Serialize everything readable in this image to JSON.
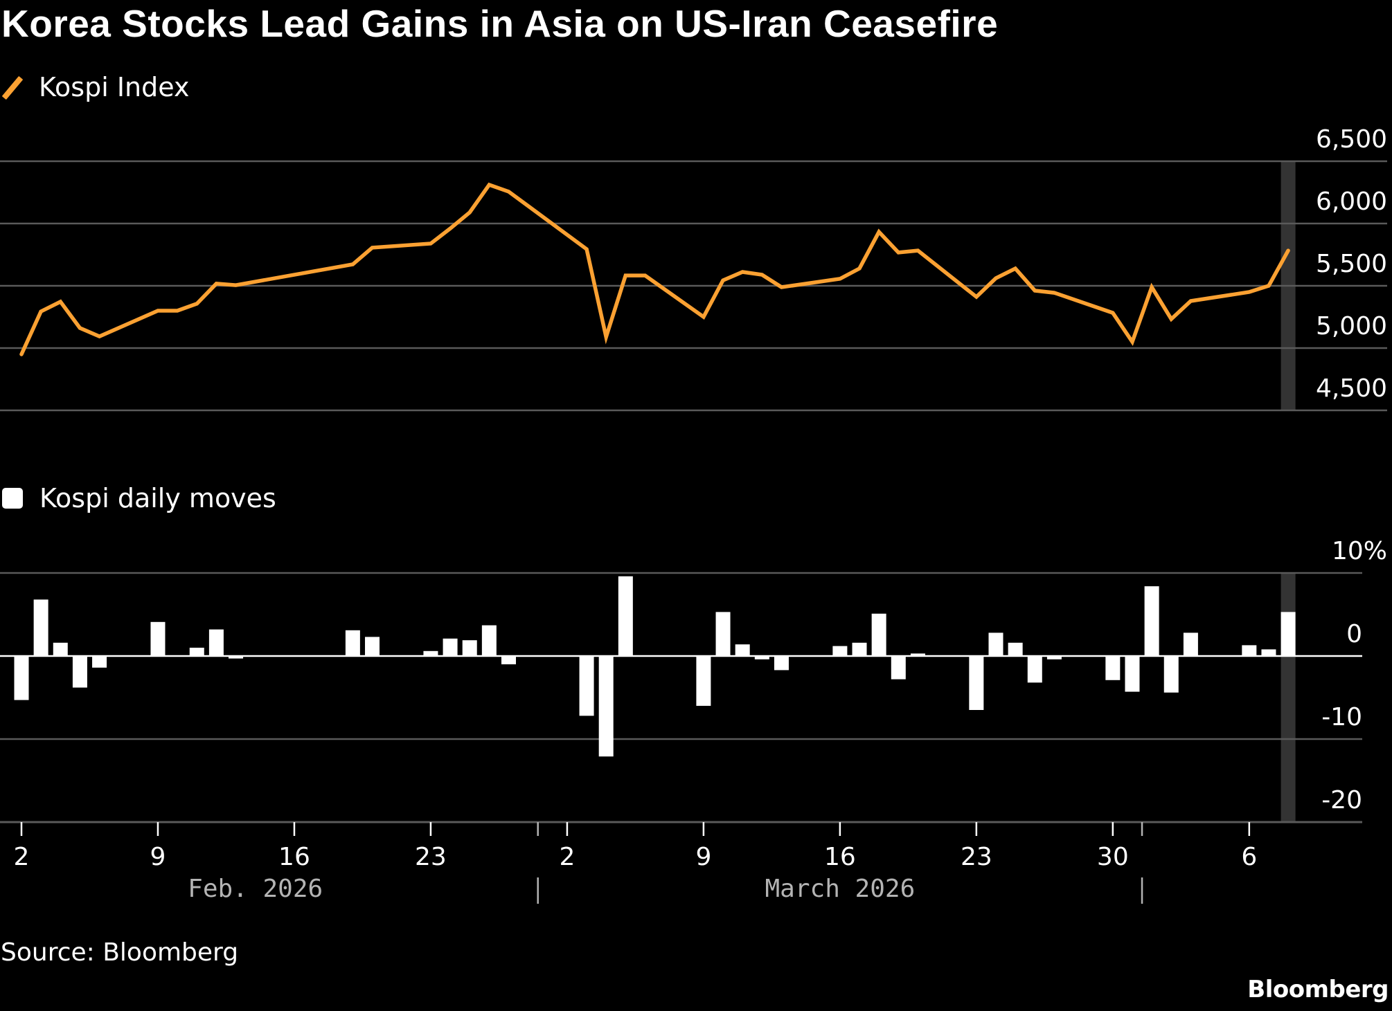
{
  "chart_data": [
    {
      "type": "line",
      "title": "Korea Stocks Lead Gains in Asia on US-Iran Ceasefire",
      "legend": "Kospi Index",
      "legend_placement": "top-left",
      "color": "#FBA132",
      "y_axis_side": "right",
      "ylim": [
        4500,
        6500
      ],
      "yticks": [
        6500,
        6000,
        5500,
        5000,
        4500
      ],
      "ytick_labels": [
        "6,500",
        "6,000",
        "5,500",
        "5,000",
        "4,500"
      ],
      "grid": true,
      "highlight_date": "2026-04-08",
      "points": [
        {
          "date": "2026-02-02",
          "value": 4950
        },
        {
          "date": "2026-02-03",
          "value": 5294
        },
        {
          "date": "2026-02-04",
          "value": 5372
        },
        {
          "date": "2026-02-05",
          "value": 5161
        },
        {
          "date": "2026-02-06",
          "value": 5094
        },
        {
          "date": "2026-02-09",
          "value": 5300
        },
        {
          "date": "2026-02-10",
          "value": 5300
        },
        {
          "date": "2026-02-11",
          "value": 5356
        },
        {
          "date": "2026-02-12",
          "value": 5517
        },
        {
          "date": "2026-02-13",
          "value": 5505
        },
        {
          "date": "2026-02-19",
          "value": 5672
        },
        {
          "date": "2026-02-20",
          "value": 5806
        },
        {
          "date": "2026-02-23",
          "value": 5839
        },
        {
          "date": "2026-02-24",
          "value": 5960
        },
        {
          "date": "2026-02-25",
          "value": 6089
        },
        {
          "date": "2026-02-26",
          "value": 6311
        },
        {
          "date": "2026-02-27",
          "value": 6256
        },
        {
          "date": "2026-03-03",
          "value": 5794
        },
        {
          "date": "2026-03-04",
          "value": 5089
        },
        {
          "date": "2026-03-05",
          "value": 5583
        },
        {
          "date": "2026-03-06",
          "value": 5583
        },
        {
          "date": "2026-03-09",
          "value": 5250
        },
        {
          "date": "2026-03-10",
          "value": 5544
        },
        {
          "date": "2026-03-11",
          "value": 5611
        },
        {
          "date": "2026-03-12",
          "value": 5589
        },
        {
          "date": "2026-03-13",
          "value": 5489
        },
        {
          "date": "2026-03-16",
          "value": 5556
        },
        {
          "date": "2026-03-17",
          "value": 5639
        },
        {
          "date": "2026-03-18",
          "value": 5933
        },
        {
          "date": "2026-03-19",
          "value": 5767
        },
        {
          "date": "2026-03-20",
          "value": 5783
        },
        {
          "date": "2026-03-23",
          "value": 5411
        },
        {
          "date": "2026-03-24",
          "value": 5561
        },
        {
          "date": "2026-03-25",
          "value": 5639
        },
        {
          "date": "2026-03-26",
          "value": 5461
        },
        {
          "date": "2026-03-27",
          "value": 5444
        },
        {
          "date": "2026-03-30",
          "value": 5283
        },
        {
          "date": "2026-03-31",
          "value": 5050
        },
        {
          "date": "2026-04-01",
          "value": 5489
        },
        {
          "date": "2026-04-02",
          "value": 5233
        },
        {
          "date": "2026-04-03",
          "value": 5378
        },
        {
          "date": "2026-04-06",
          "value": 5450
        },
        {
          "date": "2026-04-07",
          "value": 5500
        },
        {
          "date": "2026-04-08",
          "value": 5783
        }
      ]
    },
    {
      "type": "bar",
      "legend": "Kospi daily moves",
      "legend_placement": "top-left",
      "color": "#FFFFFF",
      "y_axis_side": "right",
      "ylabel_unit": "%",
      "ylim": [
        -20,
        10
      ],
      "yticks": [
        10,
        0,
        -10,
        -20
      ],
      "ytick_labels": [
        "10%",
        "0",
        "-10",
        "-20"
      ],
      "grid": true,
      "highlight_date": "2026-04-08",
      "points": [
        {
          "date": "2026-02-02",
          "value": -5.3
        },
        {
          "date": "2026-02-03",
          "value": 6.8
        },
        {
          "date": "2026-02-04",
          "value": 1.6
        },
        {
          "date": "2026-02-05",
          "value": -3.8
        },
        {
          "date": "2026-02-06",
          "value": -1.4
        },
        {
          "date": "2026-02-09",
          "value": 4.1
        },
        {
          "date": "2026-02-10",
          "value": 0.0
        },
        {
          "date": "2026-02-11",
          "value": 1.0
        },
        {
          "date": "2026-02-12",
          "value": 3.2
        },
        {
          "date": "2026-02-13",
          "value": -0.3
        },
        {
          "date": "2026-02-19",
          "value": 3.1
        },
        {
          "date": "2026-02-20",
          "value": 2.3
        },
        {
          "date": "2026-02-23",
          "value": 0.6
        },
        {
          "date": "2026-02-24",
          "value": 2.1
        },
        {
          "date": "2026-02-25",
          "value": 1.9
        },
        {
          "date": "2026-02-26",
          "value": 3.7
        },
        {
          "date": "2026-02-27",
          "value": -1.0
        },
        {
          "date": "2026-03-03",
          "value": -7.2
        },
        {
          "date": "2026-03-04",
          "value": -12.1
        },
        {
          "date": "2026-03-05",
          "value": 9.6
        },
        {
          "date": "2026-03-06",
          "value": 0.0
        },
        {
          "date": "2026-03-09",
          "value": -6.0
        },
        {
          "date": "2026-03-10",
          "value": 5.3
        },
        {
          "date": "2026-03-11",
          "value": 1.4
        },
        {
          "date": "2026-03-12",
          "value": -0.4
        },
        {
          "date": "2026-03-13",
          "value": -1.7
        },
        {
          "date": "2026-03-16",
          "value": 1.2
        },
        {
          "date": "2026-03-17",
          "value": 1.6
        },
        {
          "date": "2026-03-18",
          "value": 5.1
        },
        {
          "date": "2026-03-19",
          "value": -2.8
        },
        {
          "date": "2026-03-20",
          "value": 0.3
        },
        {
          "date": "2026-03-23",
          "value": -6.5
        },
        {
          "date": "2026-03-24",
          "value": 2.8
        },
        {
          "date": "2026-03-25",
          "value": 1.6
        },
        {
          "date": "2026-03-26",
          "value": -3.2
        },
        {
          "date": "2026-03-27",
          "value": -0.4
        },
        {
          "date": "2026-03-30",
          "value": -2.9
        },
        {
          "date": "2026-03-31",
          "value": -4.3
        },
        {
          "date": "2026-04-01",
          "value": 8.4
        },
        {
          "date": "2026-04-02",
          "value": -4.4
        },
        {
          "date": "2026-04-03",
          "value": 2.8
        },
        {
          "date": "2026-04-06",
          "value": 1.3
        },
        {
          "date": "2026-04-07",
          "value": 0.8
        },
        {
          "date": "2026-04-08",
          "value": 5.3
        }
      ]
    }
  ],
  "x_axis": {
    "start_date": "2026-02-02",
    "end_date": "2026-04-08",
    "ticks": [
      {
        "date": "2026-02-02",
        "label": "2"
      },
      {
        "date": "2026-02-09",
        "label": "9"
      },
      {
        "date": "2026-02-16",
        "label": "16"
      },
      {
        "date": "2026-02-23",
        "label": "23"
      },
      {
        "date": "2026-03-02",
        "label": "2"
      },
      {
        "date": "2026-03-09",
        "label": "9"
      },
      {
        "date": "2026-03-16",
        "label": "16"
      },
      {
        "date": "2026-03-23",
        "label": "23"
      },
      {
        "date": "2026-03-30",
        "label": "30"
      },
      {
        "date": "2026-04-06",
        "label": "6"
      }
    ],
    "month_separators": [
      "2026-03-01",
      "2026-04-01"
    ],
    "months": [
      {
        "label": "Feb. 2026",
        "center_date": "2026-02-14"
      },
      {
        "label": "March 2026",
        "center_date": "2026-03-16"
      }
    ]
  },
  "header": {
    "title": "Korea Stocks Lead Gains in Asia on US-Iran Ceasefire"
  },
  "legend": {
    "line_label": "Kospi Index",
    "bar_label": "Kospi daily moves"
  },
  "footer": {
    "source": "Source: Bloomberg",
    "brand": "Bloomberg"
  }
}
